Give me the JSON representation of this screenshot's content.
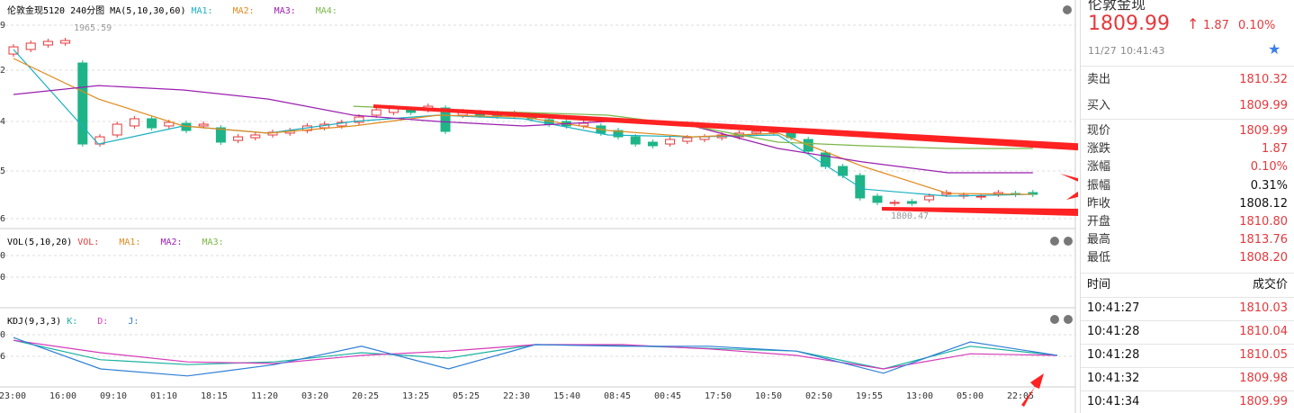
{
  "chart_panel": {
    "main": {
      "title": "伦敦金现5120 240分图 MA(5,10,30,60)",
      "legend": [
        "MA1:",
        "MA2:",
        "MA3:",
        "MA4:"
      ],
      "axis_labels": [
        "9",
        "2",
        "4",
        "5",
        "6"
      ],
      "high_label": "1965.59",
      "low_label": "1800.47",
      "ylim": [
        1790,
        1980
      ],
      "candles": [
        [
          1946.9,
          1953.5
        ],
        [
          1951.1,
          1956.9
        ],
        [
          1955.2,
          1958.5
        ],
        [
          1956.9,
          1959.3
        ],
        [
          1938.7,
          1864.3
        ],
        [
          1864.3,
          1870.9
        ],
        [
          1872.6,
          1882.5
        ],
        [
          1880.9,
          1887.5
        ],
        [
          1887.5,
          1879.2
        ],
        [
          1880.9,
          1884.2
        ],
        [
          1883.3,
          1876.7
        ],
        [
          1880.9,
          1882.5
        ],
        [
          1879.2,
          1866.0
        ],
        [
          1867.6,
          1870.9
        ],
        [
          1870.1,
          1872.6
        ],
        [
          1872.6,
          1875.1
        ],
        [
          1874.3,
          1876.7
        ],
        [
          1876.7,
          1880.9
        ],
        [
          1879.2,
          1882.5
        ],
        [
          1880.9,
          1884.2
        ],
        [
          1884.2,
          1889.1
        ],
        [
          1890.8,
          1895.7
        ],
        [
          1893.3,
          1897.4
        ],
        [
          1895.7,
          1893.3
        ],
        [
          1895.7,
          1899.0
        ],
        [
          1897.4,
          1875.9
        ],
        [
          1890.8,
          1894.1
        ],
        [
          1893.3,
          1890.8
        ],
        [
          1892.4,
          1889.9
        ],
        [
          1890.8,
          1892.4
        ],
        [
          1889.1,
          1887.5
        ],
        [
          1886.6,
          1882.5
        ],
        [
          1885.0,
          1880.9
        ],
        [
          1880.9,
          1883.3
        ],
        [
          1880.9,
          1874.3
        ],
        [
          1876.7,
          1870.9
        ],
        [
          1870.9,
          1864.3
        ],
        [
          1866.0,
          1862.7
        ],
        [
          1864.3,
          1868.5
        ],
        [
          1866.8,
          1870.1
        ],
        [
          1868.5,
          1870.9
        ],
        [
          1870.1,
          1872.6
        ],
        [
          1870.9,
          1874.3
        ],
        [
          1874.3,
          1875.9
        ],
        [
          1875.1,
          1876.7
        ],
        [
          1876.7,
          1870.1
        ],
        [
          1868.5,
          1857.7
        ],
        [
          1856.1,
          1843.7
        ],
        [
          1843.7,
          1835.4
        ],
        [
          1835.4,
          1814.8
        ],
        [
          1816.4,
          1810.7
        ],
        [
          1809.8,
          1810.7
        ],
        [
          1811.5,
          1809.8
        ],
        [
          1813.1,
          1816.4
        ],
        [
          1818.1,
          1819.7
        ],
        [
          1816.4,
          1817.3
        ],
        [
          1815.6,
          1816.4
        ],
        [
          1818.1,
          1819.7
        ],
        [
          1818.9,
          1818.1
        ],
        [
          1819.7,
          1818.1
        ]
      ],
      "series": [
        {
          "name": "MA1",
          "color": "#1ab0c0",
          "values": [
            1951.1,
            1864.3,
            1880.9,
            1874.3,
            1885.0,
            1890.8,
            1887.5,
            1872.6,
            1870.9,
            1872.6,
            1823.0,
            1816.4,
            1818.1
          ]
        },
        {
          "name": "MA2",
          "color": "#e08a1e",
          "values": [
            1942.8,
            1905.6,
            1880.9,
            1874.3,
            1880.9,
            1890.8,
            1889.1,
            1876.7,
            1870.9,
            1874.3,
            1843.7,
            1818.9,
            1818.1
          ]
        },
        {
          "name": "MA3",
          "color": "#9b1fb0",
          "values": [
            1909.8,
            1918.0,
            1913.9,
            1905.6,
            1890.8,
            1885.0,
            1880.9,
            1885.0,
            1880.9,
            1860.2,
            1847.8,
            1837.9,
            1837.9
          ]
        },
        {
          "name": "MA4",
          "color": "#7ab648",
          "values": [
            null,
            null,
            null,
            null,
            1899.0,
            1895.7,
            1893.3,
            1890.8,
            1880.9,
            1866.0,
            1862.7,
            1860.2,
            1860.2
          ]
        }
      ]
    },
    "vol": {
      "title": "VOL(5,10,20)",
      "legend": [
        "VOL:",
        "MA1:",
        "MA2:",
        "MA3:"
      ],
      "axis_labels": [
        "0",
        "0"
      ]
    },
    "kdj": {
      "title": "KDJ(9,3,3)",
      "legend": [
        "K:",
        "D:",
        "J:"
      ],
      "axis_labels": [
        "0",
        "6"
      ],
      "ylim": [
        0,
        100
      ],
      "series": [
        {
          "name": "K",
          "color": "#1ab0a0",
          "values": [
            78,
            42,
            33,
            38,
            55,
            45,
            70,
            68,
            63,
            58,
            25,
            67,
            50
          ]
        },
        {
          "name": "D",
          "color": "#d63ab8",
          "values": [
            78,
            55,
            38,
            35,
            50,
            58,
            70,
            70,
            62,
            50,
            25,
            53,
            50
          ]
        },
        {
          "name": "J",
          "color": "#2f7fd6",
          "values": [
            83,
            25,
            12,
            33,
            67,
            25,
            70,
            67,
            67,
            58,
            17,
            75,
            50
          ]
        }
      ]
    },
    "x_labels": [
      "23:00",
      "16:00",
      "09:10",
      "01:10",
      "18:15",
      "11:20",
      "03:20",
      "20:25",
      "13:25",
      "05:25",
      "22:30",
      "15:40",
      "08:45",
      "00:45",
      "17:50",
      "10:50",
      "02:50",
      "19:55",
      "13:00",
      "05:00",
      "22:05"
    ]
  },
  "quote_panel": {
    "name": "伦敦金现",
    "price": "1809.99",
    "change": "1.87",
    "change_pct": "0.10%",
    "date": "11/27",
    "time": "10:41:43",
    "fields": [
      [
        "卖出",
        "1810.32"
      ],
      [
        "买入",
        "1809.99"
      ],
      [
        "现价",
        "1809.99"
      ],
      [
        "涨跌",
        "1.87"
      ],
      [
        "涨幅",
        "0.10%"
      ],
      [
        "振幅",
        "0.31%"
      ],
      [
        "昨收",
        "1808.12"
      ],
      [
        "开盘",
        "1810.80"
      ],
      [
        "最高",
        "1813.76"
      ],
      [
        "最低",
        "1808.20"
      ]
    ],
    "trades_header": [
      "时间",
      "成交价"
    ],
    "trades": [
      [
        "10:41:27",
        "1810.03"
      ],
      [
        "10:41:28",
        "1810.04"
      ],
      [
        "10:41:28",
        "1810.05"
      ],
      [
        "10:41:32",
        "1809.98"
      ],
      [
        "10:41:34",
        "1809.99"
      ]
    ]
  }
}
